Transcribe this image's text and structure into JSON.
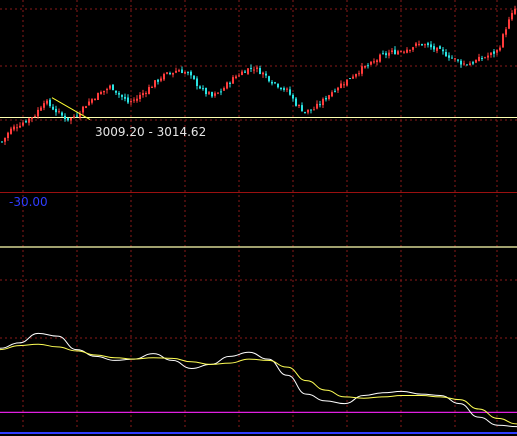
{
  "chart_data": [
    {
      "type": "candlestick",
      "panel": "price",
      "annotation": "3009.20 - 3014.62",
      "reference_level_label": "",
      "grid": true,
      "colors": {
        "up": "#ff3b3b",
        "down": "#29e4e4",
        "trendline": "#ffff33",
        "reference": "#ffffb0",
        "grid": "#8a1a1a"
      },
      "close_path": [
        2985,
        2998,
        3004,
        3009,
        3015,
        3030,
        3022,
        3014,
        3009,
        3016,
        3026,
        3034,
        3040,
        3046,
        3036,
        3028,
        3032,
        3040,
        3048,
        3056,
        3060,
        3064,
        3060,
        3050,
        3040,
        3034,
        3040,
        3050,
        3058,
        3064,
        3066,
        3060,
        3052,
        3046,
        3040,
        3026,
        3018,
        3020,
        3028,
        3038,
        3046,
        3052,
        3060,
        3066,
        3070,
        3078,
        3082,
        3084,
        3086,
        3090,
        3092,
        3088,
        3084,
        3080,
        3074,
        3070,
        3072,
        3076,
        3080,
        3085,
        3112,
        3130
      ],
      "trendline": {
        "from": 3033.1,
        "to": 3009.2
      },
      "reference_level": 3011.5,
      "ylim": [
        2930,
        3140
      ]
    },
    {
      "type": "line",
      "panel": "indicator",
      "value_label": "-30.00",
      "grid": true,
      "series": [
        {
          "color": "#ffffff",
          "values": [
            20,
            28,
            42,
            38,
            18,
            8,
            2,
            4,
            12,
            2,
            -10,
            -4,
            8,
            14,
            4,
            -20,
            -48,
            -58,
            -62,
            -50,
            -46,
            -44,
            -48,
            -50,
            -62,
            -82,
            -94,
            -96
          ]
        },
        {
          "color": "#ffff55",
          "values": [
            18,
            24,
            26,
            22,
            16,
            10,
            6,
            4,
            6,
            5,
            0,
            -4,
            -2,
            4,
            2,
            -8,
            -28,
            -42,
            -52,
            -54,
            -52,
            -50,
            -50,
            -52,
            -56,
            -70,
            -84,
            -92
          ]
        }
      ],
      "reference_lines": [
        {
          "value": 170,
          "color": "#ffffb0"
        },
        {
          "value": -75,
          "color": "#e020e0"
        }
      ],
      "ylim": [
        -110,
        250
      ]
    }
  ]
}
